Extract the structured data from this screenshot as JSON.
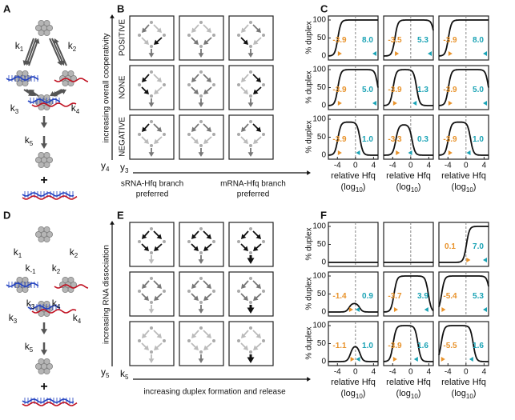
{
  "top": {
    "scheme": {
      "label": "A",
      "plus": "+",
      "rates": [
        {
          "k": "k",
          "sub": "1"
        },
        {
          "k": "k",
          "sub": "2"
        },
        {
          "k": "k",
          "sub": "3"
        },
        {
          "k": "k",
          "sub": "4"
        },
        {
          "k": "k",
          "sub": "5"
        }
      ]
    },
    "grid": {
      "label": "B",
      "y_axis": "increasing overall cooperativity",
      "y_var": {
        "k": "y",
        "sub": "4"
      },
      "rows": [
        "POSITIVE",
        "NONE",
        "NEGATIVE"
      ],
      "x_var": {
        "k": "y",
        "sub": "3"
      },
      "x_left": [
        "sRNA-Hfq branch",
        "preferred"
      ],
      "x_right": [
        "mRNA-Hfq branch",
        "preferred"
      ]
    },
    "plots": {
      "label": "C",
      "ylabel": "% duplex",
      "xlabel": "relative Hfq",
      "xunit": {
        "base": "(log",
        "sub": "10",
        "end": ")"
      },
      "xlim": [
        -6,
        5
      ],
      "ylim": [
        0,
        100
      ],
      "xticks": [
        -4,
        0,
        4
      ],
      "yticks": [
        0,
        50,
        100
      ],
      "cells": [
        [
          {
            "left": "-3.9",
            "right": "8.0",
            "peak": 100
          },
          {
            "left": "-3.5",
            "right": "5.3",
            "peak": 100
          },
          {
            "left": "-3.9",
            "right": "8.0",
            "peak": 100
          }
        ],
        [
          {
            "left": "-3.9",
            "right": "5.0",
            "peak": 100
          },
          {
            "left": "-3.9",
            "right": "1.3",
            "peak": 100
          },
          {
            "left": "-3.9",
            "right": "5.0",
            "peak": 100
          }
        ],
        [
          {
            "left": "-3.9",
            "right": "1.0",
            "peak": 92
          },
          {
            "left": "-3.3",
            "right": "0.3",
            "peak": 85
          },
          {
            "left": "-3.9",
            "right": "1.0",
            "peak": 92
          }
        ]
      ]
    }
  },
  "bottom": {
    "scheme": {
      "label": "D",
      "plus": "+",
      "rates": [
        {
          "k": "k",
          "sub": "1"
        },
        {
          "k": "k",
          "sub": "2"
        },
        {
          "k": "k",
          "sub": "-1"
        },
        {
          "k": "k",
          "sub": "2"
        },
        {
          "k": "k",
          "sub": "3"
        },
        {
          "k": "k",
          "sub": "4"
        },
        {
          "k": "k",
          "sub": "3"
        },
        {
          "k": "k",
          "sub": "4"
        },
        {
          "k": "k",
          "sub": "5"
        }
      ]
    },
    "grid": {
      "label": "E",
      "y_axis": "increasing RNA dissociation",
      "y_var": {
        "k": "y",
        "sub": "5"
      },
      "rows": [],
      "x_var": {
        "k": "k",
        "sub": "5"
      },
      "x_caption": "increasing duplex formation and release"
    },
    "plots": {
      "label": "F",
      "ylabel": "% duplex",
      "xlabel": "relative Hfq",
      "xunit": {
        "base": "(log",
        "sub": "10",
        "end": ")"
      },
      "xlim": [
        -6,
        5
      ],
      "ylim": [
        0,
        100
      ],
      "xticks": [
        -4,
        0,
        4
      ],
      "yticks": [
        0,
        50,
        100
      ],
      "cells": [
        [
          {
            "left": null,
            "right": null,
            "peak": 0
          },
          {
            "left": null,
            "right": null,
            "peak": 0
          },
          {
            "left": "0.1",
            "right": "7.0",
            "peak": 100
          }
        ],
        [
          {
            "left": "-1.4",
            "right": "0.9",
            "peak": 25
          },
          {
            "left": "-3.7",
            "right": "3.9",
            "peak": 100
          },
          {
            "left": "-5.4",
            "right": "5.3",
            "peak": 100
          }
        ],
        [
          {
            "left": "-1.1",
            "right": "1.0",
            "peak": 45
          },
          {
            "left": "-3.9",
            "right": "1.6",
            "peak": 100
          },
          {
            "left": "-5.5",
            "right": "1.6",
            "peak": 100
          }
        ]
      ]
    }
  }
}
